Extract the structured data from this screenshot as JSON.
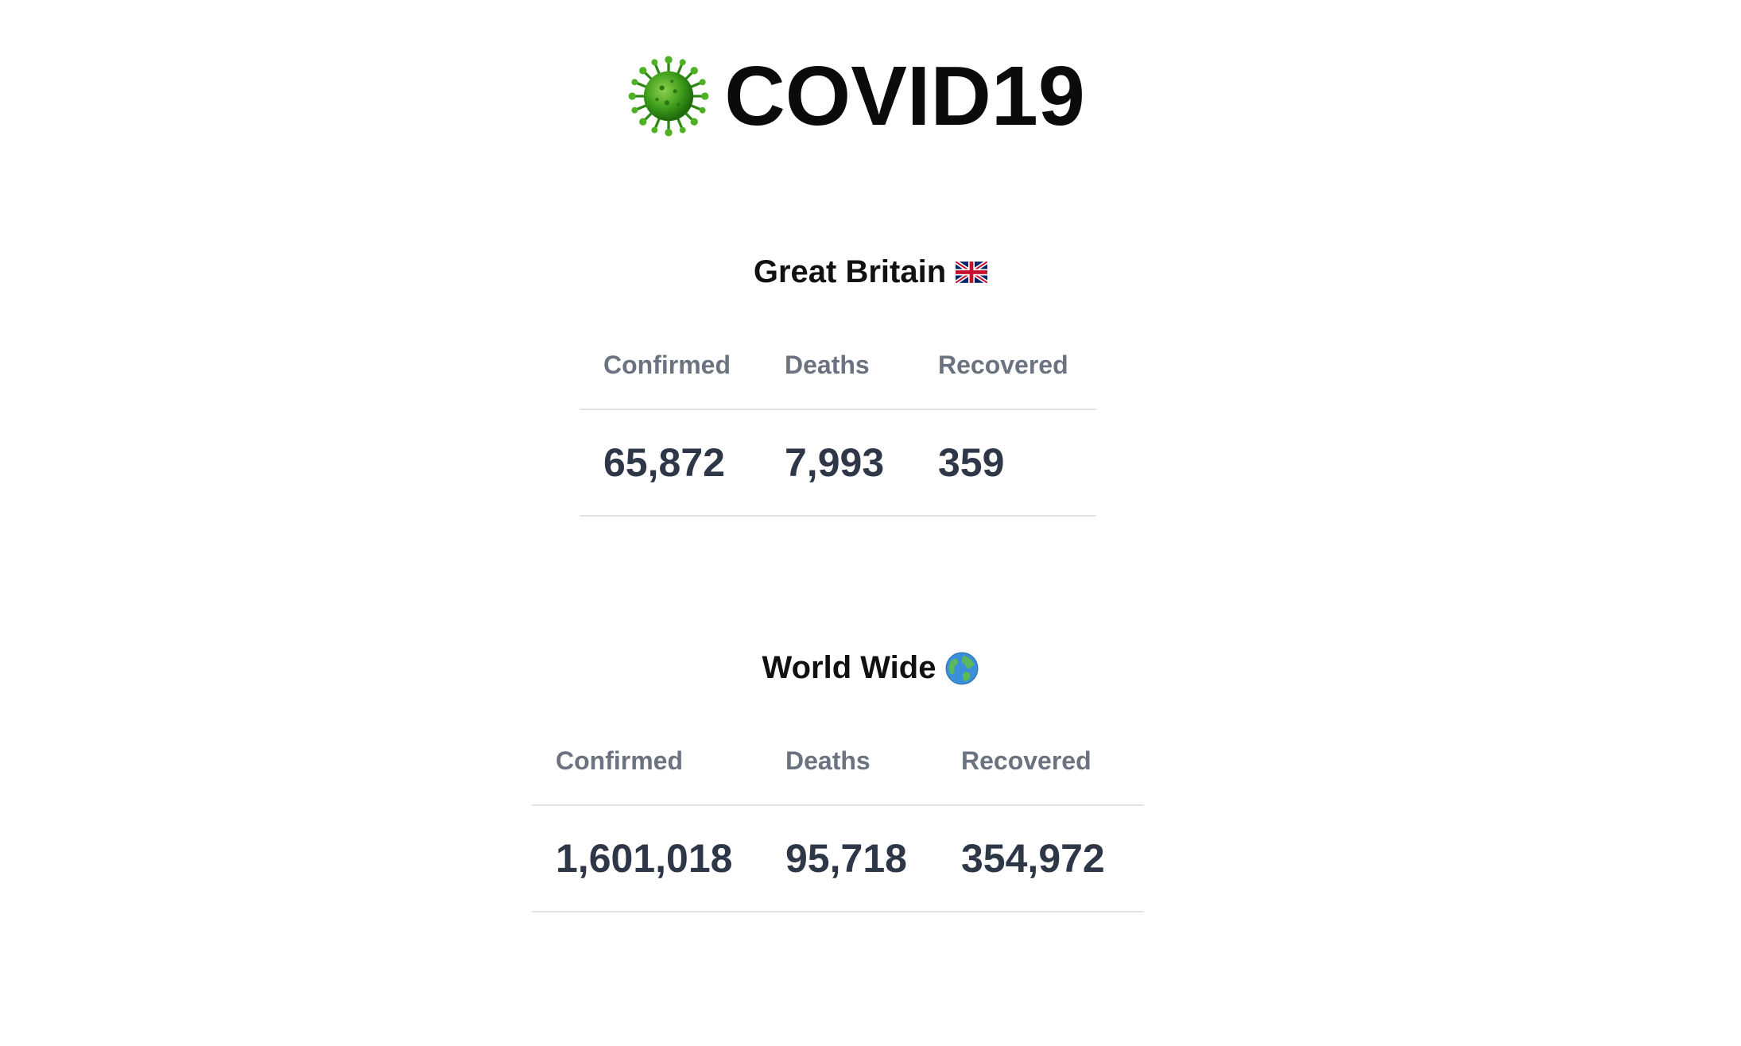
{
  "header": {
    "icon": "virus-icon",
    "title": "COVID19"
  },
  "great_britain": {
    "heading": "Great Britain",
    "flag_icon": "uk-flag-icon",
    "columns": [
      "Confirmed",
      "Deaths",
      "Recovered"
    ],
    "values": [
      "65,872",
      "7,993",
      "359"
    ]
  },
  "world_wide": {
    "heading": "World Wide",
    "globe_icon": "globe-icon",
    "columns": [
      "Confirmed",
      "Deaths",
      "Recovered"
    ],
    "values": [
      "1,601,018",
      "95,718",
      "354,972"
    ]
  },
  "colors": {
    "title": "#0b0b0b",
    "column_header": "#6b7280",
    "value": "#2d3748",
    "divider": "#e2e2e2",
    "virus_green": "#3f9e1c"
  }
}
